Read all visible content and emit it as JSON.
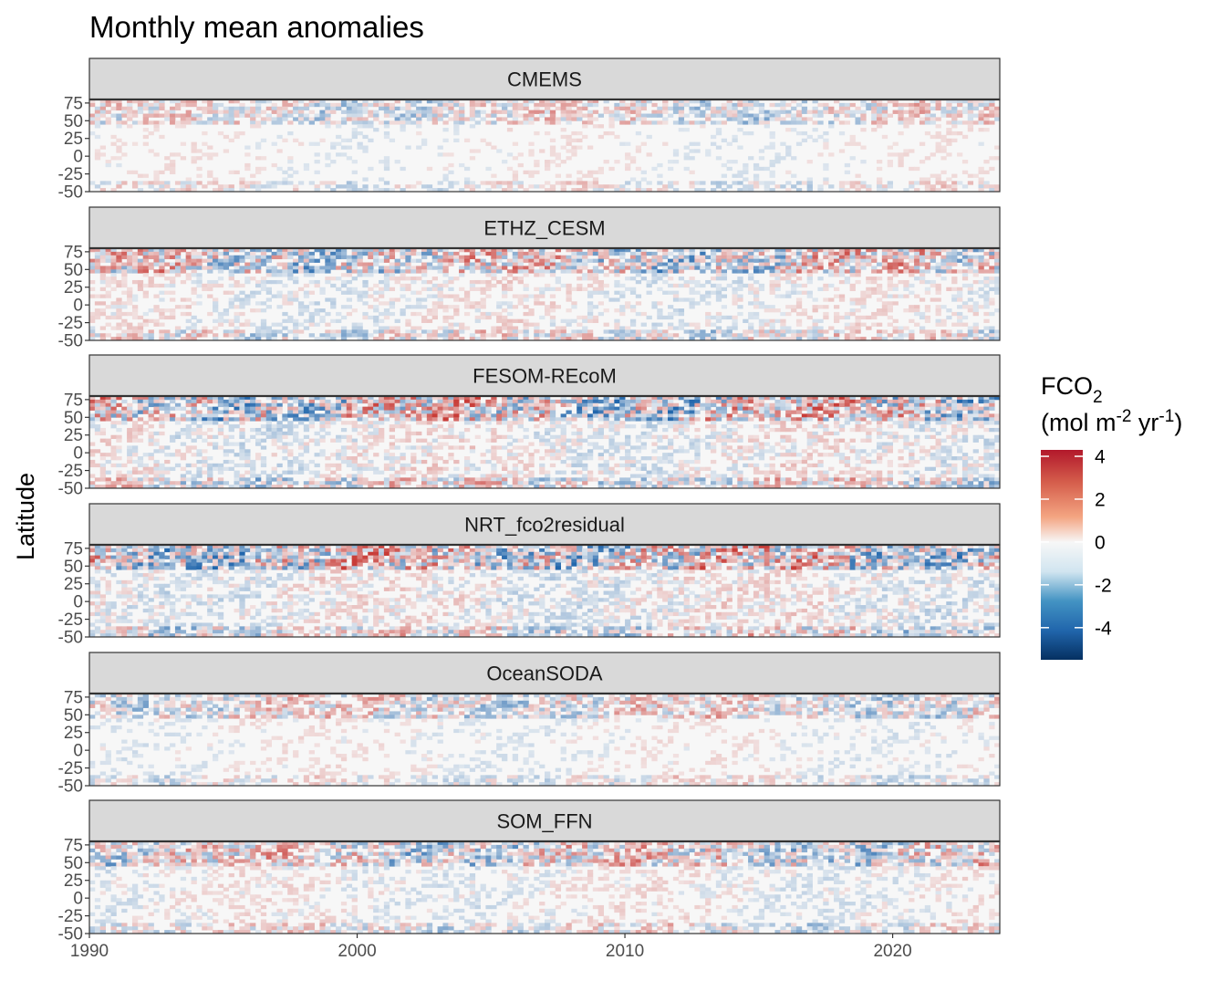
{
  "chart_data": {
    "type": "heatmap",
    "title": "Monthly mean anomalies",
    "ylabel": "Latitude",
    "xlabel": "",
    "x_ticks": [
      1990,
      2000,
      2010,
      2020
    ],
    "x_range": [
      1990,
      2024
    ],
    "y_ticks": [
      75,
      50,
      25,
      0,
      -25,
      -50
    ],
    "y_range": [
      -50,
      80
    ],
    "panels": [
      {
        "name": "CMEMS",
        "intensity": 0.55
      },
      {
        "name": "ETHZ_CESM",
        "intensity": 0.85
      },
      {
        "name": "FESOM-REcoM",
        "intensity": 1.0
      },
      {
        "name": "NRT_fco2residual",
        "intensity": 1.0
      },
      {
        "name": "OceanSODA",
        "intensity": 0.6
      },
      {
        "name": "SOM_FFN",
        "intensity": 0.75
      }
    ],
    "legend": {
      "title_main": "FCO",
      "title_sub": "2",
      "units_a": "(mol m",
      "units_sup1": "-2",
      "units_b": " yr",
      "units_sup2": "-1",
      "units_c": ")",
      "ticks": [
        4,
        2,
        0,
        -2,
        -4
      ],
      "range": [
        -5.5,
        4.3
      ],
      "placement": "right"
    },
    "colors": {
      "strong_negative": "#053061",
      "negative": "#2166ac",
      "light_negative": "#92c5de",
      "neutral": "#f7f7f7",
      "light_positive": "#f4a582",
      "positive": "#d6604d",
      "strong_positive": "#b2182b"
    }
  }
}
